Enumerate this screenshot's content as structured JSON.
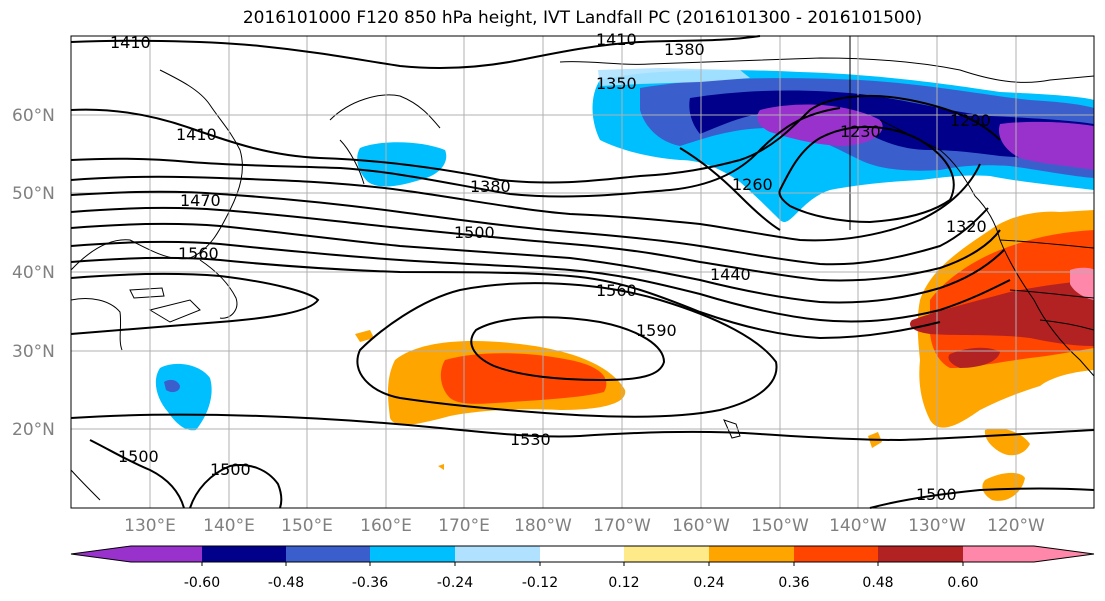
{
  "title": "2016101000 F120 850 hPa height, IVT Landfall PC (2016101300 - 2016101500)",
  "lat_labels": [
    "60°N",
    "50°N",
    "40°N",
    "30°N",
    "20°N"
  ],
  "lon_labels": [
    "130°E",
    "140°E",
    "150°E",
    "160°E",
    "170°E",
    "180°W",
    "170°W",
    "160°W",
    "150°W",
    "140°W",
    "130°W",
    "120°W"
  ],
  "contour_labels": [
    "1410",
    "1410",
    "1380",
    "1350",
    "1410",
    "1470",
    "1560",
    "1380",
    "1500",
    "1440",
    "1260",
    "1230",
    "1290",
    "1320",
    "1560",
    "1590",
    "1530",
    "1500",
    "1500",
    "1500"
  ],
  "colorbar": {
    "colors": [
      "#9932cc",
      "#00008b",
      "#3a5fcd",
      "#00bfff",
      "#b0e2ff",
      "#ffffff",
      "#ffea8a",
      "#ffa500",
      "#ff4500",
      "#b22222",
      "#ff88aa"
    ],
    "tick_labels": [
      "-0.60",
      "-0.48",
      "-0.36",
      "-0.24",
      "-0.12",
      "0.12",
      "0.24",
      "0.36",
      "0.48",
      "0.60"
    ]
  }
}
